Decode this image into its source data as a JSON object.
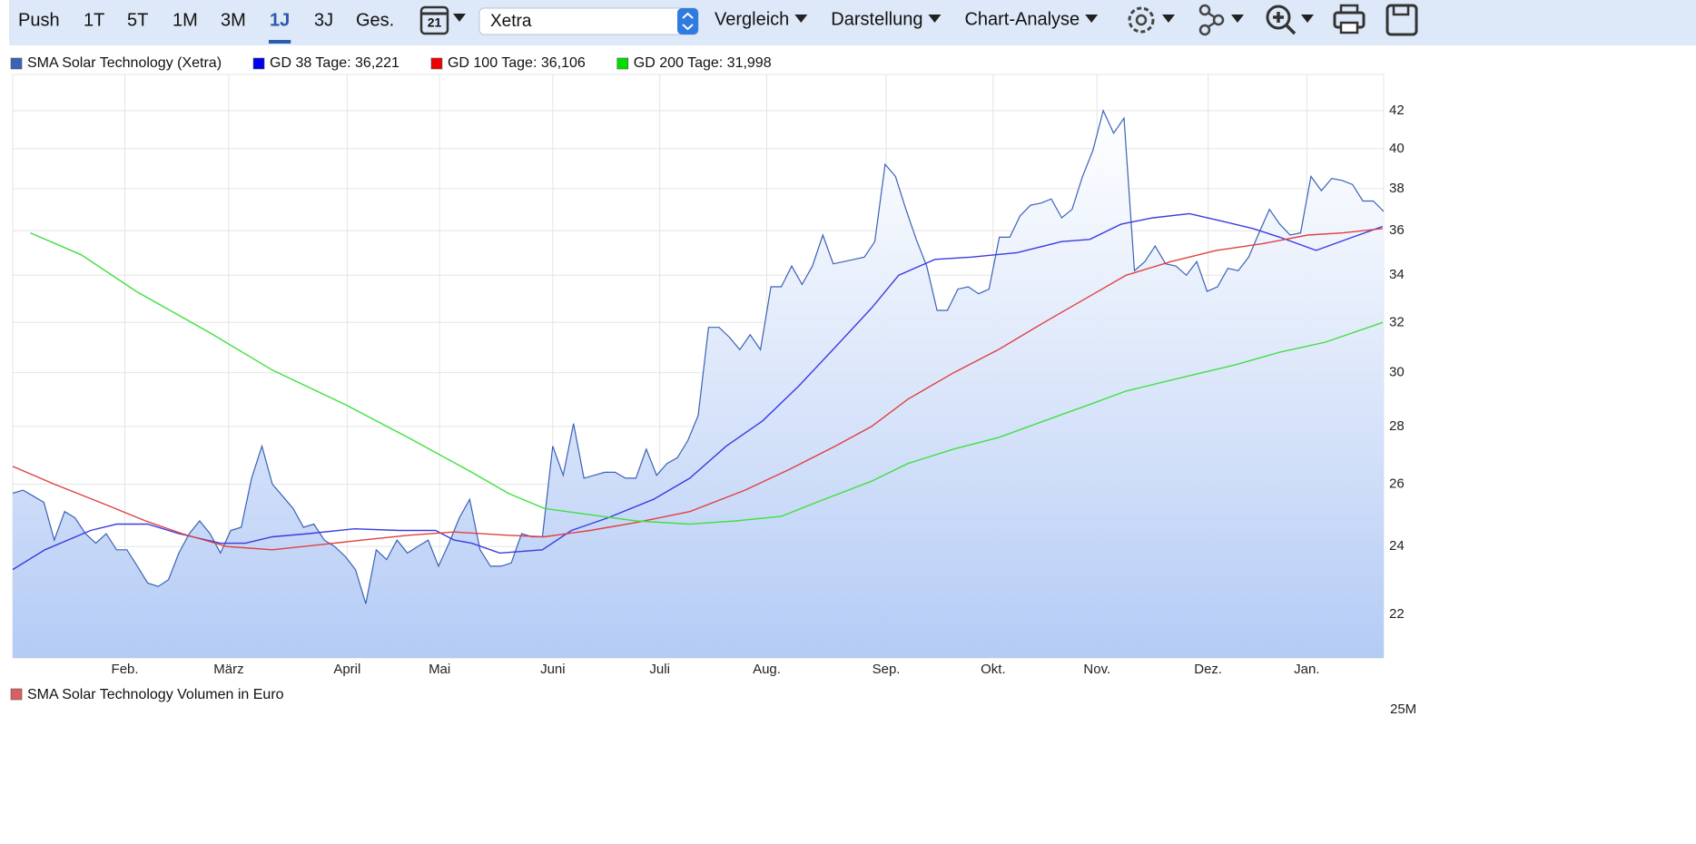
{
  "toolbar": {
    "periods": [
      "Push",
      "1T",
      "5T",
      "1M",
      "3M",
      "1J",
      "3J",
      "Ges."
    ],
    "active_period": 5,
    "calendar_day": "21",
    "exchange": "Xetra",
    "menus": [
      "Vergleich",
      "Darstellung",
      "Chart-Analyse"
    ]
  },
  "chart_data": {
    "type": "line",
    "log": true,
    "grid": true,
    "legend": "top-left",
    "xlim": [
      0,
      132
    ],
    "ylim": [
      20.8,
      44
    ],
    "xticks": [
      {
        "value": 10.8,
        "label": "Feb."
      },
      {
        "value": 20.8,
        "label": "März"
      },
      {
        "value": 32.2,
        "label": "April"
      },
      {
        "value": 41.1,
        "label": "Mai"
      },
      {
        "value": 52,
        "label": "Juni"
      },
      {
        "value": 62.3,
        "label": "Juli"
      },
      {
        "value": 72.6,
        "label": "Aug."
      },
      {
        "value": 84.1,
        "label": "Sep."
      },
      {
        "value": 94.4,
        "label": "Okt."
      },
      {
        "value": 104.4,
        "label": "Nov."
      },
      {
        "value": 115.1,
        "label": "Dez."
      },
      {
        "value": 124.6,
        "label": "Jan."
      }
    ],
    "yticks": [
      22,
      24,
      26,
      28,
      30,
      32,
      34,
      36,
      38,
      40,
      42
    ],
    "series": [
      {
        "name": "SMA Solar Technology (Xetra)",
        "color": "#3a62b5",
        "area": true,
        "x": [
          0,
          1,
          2,
          3,
          4,
          5,
          6,
          7,
          8,
          9,
          10,
          11,
          12,
          13,
          14,
          15,
          16,
          17,
          18,
          19,
          20,
          21,
          22,
          23,
          24,
          25,
          26,
          27,
          28,
          29,
          30,
          31,
          32,
          33,
          34,
          35,
          36,
          37,
          38,
          39,
          40,
          41,
          42,
          43,
          44,
          45,
          46,
          47,
          48,
          49,
          50,
          51,
          52,
          53,
          54,
          55,
          56,
          57,
          58,
          59,
          60,
          61,
          62,
          63,
          64,
          65,
          66,
          67,
          68,
          69,
          70,
          71,
          72,
          73,
          74,
          75,
          76,
          77,
          78,
          79,
          80,
          81,
          82,
          83,
          84,
          85,
          86,
          87,
          88,
          89,
          90,
          91,
          92,
          93,
          94,
          95,
          96,
          97,
          98,
          99,
          100,
          101,
          102,
          103,
          104,
          105,
          106,
          107,
          108,
          109,
          110,
          111,
          112,
          113,
          114,
          115,
          116,
          117,
          118,
          119,
          120,
          121,
          122,
          123,
          124,
          125,
          126,
          127,
          128,
          129,
          130,
          131,
          132
        ],
        "values": [
          25.7,
          25.8,
          25.6,
          25.4,
          24.2,
          25.1,
          24.9,
          24.4,
          24.1,
          24.4,
          23.9,
          23.9,
          23.4,
          22.9,
          22.8,
          23.0,
          23.8,
          24.4,
          24.8,
          24.4,
          23.8,
          24.5,
          24.6,
          26.2,
          27.3,
          26.0,
          25.6,
          25.2,
          24.6,
          24.7,
          24.2,
          24.0,
          23.7,
          23.3,
          22.3,
          23.9,
          23.6,
          24.2,
          23.8,
          24.0,
          24.2,
          23.4,
          24.1,
          24.9,
          25.5,
          23.9,
          23.4,
          23.4,
          23.5,
          24.4,
          24.3,
          24.3,
          27.3,
          26.3,
          28.1,
          26.2,
          26.3,
          26.4,
          26.4,
          26.2,
          26.2,
          27.2,
          26.3,
          26.7,
          26.9,
          27.5,
          28.4,
          31.8,
          31.8,
          31.4,
          30.9,
          31.5,
          30.9,
          33.5,
          33.5,
          34.4,
          33.6,
          34.4,
          35.8,
          34.5,
          34.6,
          34.7,
          34.8,
          35.5,
          39.2,
          38.6,
          37.0,
          35.6,
          34.4,
          32.5,
          32.5,
          33.4,
          33.5,
          33.2,
          33.4,
          35.7,
          35.7,
          36.7,
          37.2,
          37.3,
          37.5,
          36.6,
          37.0,
          38.6,
          39.9,
          42.0,
          40.8,
          41.6,
          34.2,
          34.6,
          35.3,
          34.5,
          34.4,
          34.0,
          34.6,
          33.3,
          33.5,
          34.3,
          34.2,
          34.8,
          35.9,
          37.0,
          36.3,
          35.8,
          35.9,
          38.6,
          37.9,
          38.5,
          38.4,
          38.2,
          37.4,
          37.4,
          36.9
        ]
      },
      {
        "name": "GD 38 Tage: 36,221",
        "color": "#3b3be0",
        "swatch": "#0000ee",
        "x": [
          0,
          3.1,
          7.5,
          10,
          13,
          16,
          20,
          22.4,
          25,
          28.5,
          32.9,
          37.2,
          40.7,
          42.5,
          44.2,
          46.9,
          51,
          53.8,
          57.3,
          61.7,
          65.2,
          68.7,
          72.2,
          75.7,
          79.2,
          82.7,
          85.3,
          88.8,
          92.3,
          96.7,
          101,
          103.7,
          106.7,
          109.8,
          113.3,
          116.8,
          119.4,
          122,
          125.5,
          129,
          131.9
        ],
        "values": [
          23.3,
          23.9,
          24.5,
          24.7,
          24.7,
          24.4,
          24.1,
          24.1,
          24.3,
          24.4,
          24.55,
          24.5,
          24.5,
          24.2,
          24.1,
          23.8,
          23.9,
          24.5,
          24.9,
          25.5,
          26.2,
          27.3,
          28.2,
          29.5,
          31.0,
          32.6,
          34.0,
          34.7,
          34.8,
          35.0,
          35.5,
          35.6,
          36.3,
          36.6,
          36.8,
          36.4,
          36.1,
          35.7,
          35.1,
          35.7,
          36.2
        ]
      },
      {
        "name": "GD 100 Tage: 36,106",
        "color": "#e04040",
        "swatch": "#ee0000",
        "x": [
          0,
          4,
          8.4,
          12.8,
          16.3,
          20.6,
          25,
          29.4,
          33.7,
          38.1,
          42.5,
          47.7,
          51.2,
          55.6,
          60,
          65.2,
          70.5,
          74.8,
          79.2,
          82.7,
          86.2,
          90.6,
          94.9,
          99.3,
          103.7,
          107.2,
          111.5,
          115.9,
          120.3,
          124.7,
          128.1,
          131.9
        ],
        "values": [
          26.6,
          26.0,
          25.4,
          24.8,
          24.4,
          24.0,
          23.9,
          24.05,
          24.2,
          24.35,
          24.45,
          24.35,
          24.3,
          24.5,
          24.75,
          25.1,
          25.8,
          26.5,
          27.3,
          28.0,
          29.0,
          30.0,
          30.9,
          32.0,
          33.1,
          34.0,
          34.6,
          35.1,
          35.4,
          35.8,
          35.9,
          36.1
        ]
      },
      {
        "name": "GD 200 Tage: 31,998",
        "color": "#40e040",
        "swatch": "#00dd00",
        "x": [
          1.7,
          6.6,
          11.9,
          18.9,
          25,
          32,
          38.1,
          44.2,
          47.7,
          51.2,
          55.6,
          60,
          65.2,
          69.6,
          74,
          77.4,
          82.7,
          86.2,
          90.6,
          94.9,
          99.3,
          103.7,
          107.2,
          112.4,
          117.7,
          122,
          126.4,
          131.9
        ],
        "values": [
          35.9,
          34.9,
          33.3,
          31.6,
          30.1,
          28.8,
          27.6,
          26.4,
          25.7,
          25.2,
          25.0,
          24.8,
          24.7,
          24.8,
          24.95,
          25.4,
          26.1,
          26.7,
          27.2,
          27.6,
          28.2,
          28.8,
          29.3,
          29.8,
          30.3,
          30.8,
          31.2,
          32.0
        ]
      }
    ]
  },
  "volume_panel": {
    "legend": "SMA Solar Technology Volumen in Euro",
    "color": "#d96060",
    "top_tick": "25M"
  }
}
